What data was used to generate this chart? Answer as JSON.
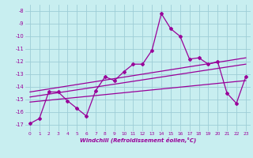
{
  "xlabel": "Windchill (Refroidissement éolien,°C)",
  "background_color": "#c8eef0",
  "grid_color": "#9dcdd6",
  "line_color": "#990099",
  "xlim": [
    -0.5,
    23.5
  ],
  "ylim": [
    -17.5,
    -7.5
  ],
  "yticks": [
    -17,
    -16,
    -15,
    -14,
    -13,
    -12,
    -11,
    -10,
    -9,
    -8
  ],
  "xticks": [
    0,
    1,
    2,
    3,
    4,
    5,
    6,
    7,
    8,
    9,
    10,
    11,
    12,
    13,
    14,
    15,
    16,
    17,
    18,
    19,
    20,
    21,
    22,
    23
  ],
  "series": [
    {
      "x": [
        0,
        1,
        2,
        3,
        4,
        5,
        6,
        7,
        8,
        9,
        10,
        11,
        12,
        13,
        14,
        15,
        16,
        17,
        18,
        19,
        20,
        21,
        22,
        23
      ],
      "y": [
        -16.9,
        -16.5,
        -14.4,
        -14.4,
        -15.1,
        -15.7,
        -16.3,
        -14.3,
        -13.2,
        -13.5,
        -12.8,
        -12.2,
        -12.2,
        -11.1,
        -8.2,
        -9.4,
        -10.0,
        -11.8,
        -11.7,
        -12.2,
        -12.0,
        -14.5,
        -15.3,
        -13.2
      ]
    },
    {
      "x": [
        0,
        23
      ],
      "y": [
        -14.8,
        -12.2
      ]
    },
    {
      "x": [
        0,
        23
      ],
      "y": [
        -14.4,
        -11.7
      ]
    },
    {
      "x": [
        0,
        23
      ],
      "y": [
        -15.2,
        -13.5
      ]
    }
  ]
}
